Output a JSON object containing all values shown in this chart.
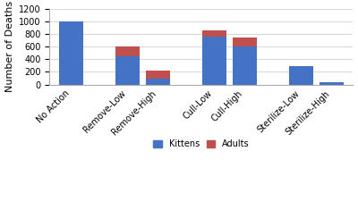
{
  "categories": [
    "No Action",
    "Remove-Low",
    "Remove-High",
    "Cull-Low",
    "Cull-High",
    "Sterilize-Low",
    "Sterilize-High"
  ],
  "kittens": [
    1000,
    450,
    100,
    750,
    600,
    290,
    40
  ],
  "adults": [
    0,
    155,
    125,
    105,
    145,
    0,
    0
  ],
  "kitten_color": "#4472C4",
  "adult_color": "#C0504D",
  "ylabel": "Number of Deaths",
  "ylim": [
    0,
    1200
  ],
  "yticks": [
    0,
    200,
    400,
    600,
    800,
    1000,
    1200
  ],
  "legend_labels": [
    "Kittens",
    "Adults"
  ],
  "background_color": "#FFFFFF",
  "grid_color": "#D9D9D9",
  "bar_width": 0.55,
  "x_positions": [
    0,
    1.3,
    2.0,
    3.3,
    4.0,
    5.3,
    6.0
  ],
  "axis_fontsize": 7.5,
  "tick_fontsize": 7.0,
  "ylabel_fontsize": 8
}
